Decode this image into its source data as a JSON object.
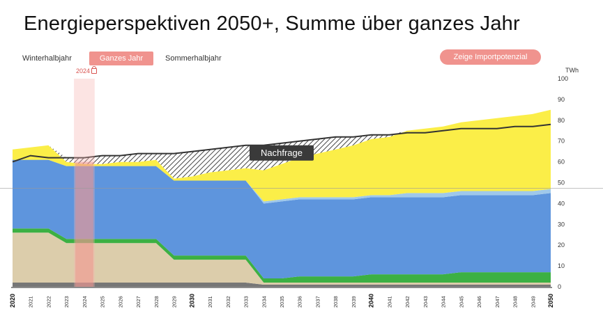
{
  "title": "Energieperspektiven 2050+, Summe über ganzes Jahr",
  "tabs": [
    {
      "label": "Winterhalbjahr",
      "active": false
    },
    {
      "label": "Ganzes Jahr",
      "active": true
    },
    {
      "label": "Sommerhalbjahr",
      "active": false
    }
  ],
  "import_button_label": "Zeige Importpotenzial",
  "year_marker": "2024",
  "colors": {
    "accent": "#f0938e",
    "solar": "#fbee48",
    "hydro": "#5e95dd",
    "wind": "#9fc8ea",
    "bio": "#3cb043",
    "nuclear": "#dccdab",
    "other": "#777777",
    "demand": "#333333"
  },
  "chart_data": {
    "type": "area",
    "unit": "TWh",
    "ylim": [
      0,
      100
    ],
    "yticks": [
      0,
      10,
      20,
      30,
      40,
      50,
      60,
      70,
      80,
      90,
      100
    ],
    "x": [
      2020,
      2021,
      2022,
      2023,
      2024,
      2025,
      2026,
      2027,
      2028,
      2029,
      2030,
      2031,
      2032,
      2033,
      2034,
      2035,
      2036,
      2037,
      2038,
      2039,
      2040,
      2041,
      2042,
      2043,
      2044,
      2045,
      2046,
      2047,
      2048,
      2049,
      2050
    ],
    "x_bold": [
      2020,
      2030,
      2040,
      2050
    ],
    "highlight_year": 2024,
    "series": [
      {
        "key": "other",
        "values": [
          2,
          2,
          2,
          2,
          2,
          2,
          2,
          2,
          2,
          2,
          2,
          2,
          2,
          2,
          1,
          1,
          1,
          1,
          1,
          1,
          1,
          1,
          1,
          1,
          1,
          1,
          1,
          1,
          1,
          1,
          1
        ]
      },
      {
        "key": "nuclear",
        "values": [
          24,
          24,
          24,
          19,
          19,
          19,
          19,
          19,
          19,
          11,
          11,
          11,
          11,
          11,
          1,
          1,
          1,
          1,
          1,
          1,
          1,
          1,
          1,
          1,
          1,
          1,
          1,
          1,
          1,
          1,
          1
        ]
      },
      {
        "key": "bio",
        "values": [
          2,
          2,
          2,
          2,
          2,
          2,
          2,
          2,
          2,
          2,
          2,
          2,
          2,
          2,
          2,
          2,
          3,
          3,
          3,
          3,
          4,
          4,
          4,
          4,
          4,
          5,
          5,
          5,
          5,
          5,
          5
        ]
      },
      {
        "key": "hydro",
        "values": [
          33,
          33,
          33,
          35,
          35,
          35,
          35,
          35,
          35,
          36,
          36,
          36,
          36,
          36,
          36,
          37,
          37,
          37,
          37,
          37,
          37,
          37,
          37,
          37,
          37,
          37,
          37,
          37,
          37,
          37,
          38
        ]
      },
      {
        "key": "wind",
        "values": [
          0,
          0,
          0,
          0,
          0,
          0,
          0,
          0,
          0,
          0,
          0,
          0,
          0,
          0,
          1,
          1,
          1,
          1,
          1,
          1,
          1,
          1,
          2,
          2,
          2,
          2,
          2,
          2,
          2,
          2,
          2
        ]
      },
      {
        "key": "solar",
        "values": [
          5,
          6,
          7,
          2,
          1,
          1,
          2,
          2,
          3,
          1,
          2,
          4,
          5,
          6,
          15,
          17,
          19,
          21,
          23,
          25,
          27,
          28,
          30,
          31,
          32,
          33,
          34,
          35,
          36,
          37,
          38
        ]
      }
    ],
    "demand": {
      "name": "Nachfrage",
      "values": [
        60,
        63,
        62,
        62,
        62,
        63,
        63,
        64,
        64,
        64,
        65,
        66,
        67,
        68,
        68,
        69,
        70,
        71,
        72,
        72,
        73,
        73,
        74,
        74,
        75,
        76,
        76,
        76,
        77,
        77,
        78
      ]
    }
  }
}
